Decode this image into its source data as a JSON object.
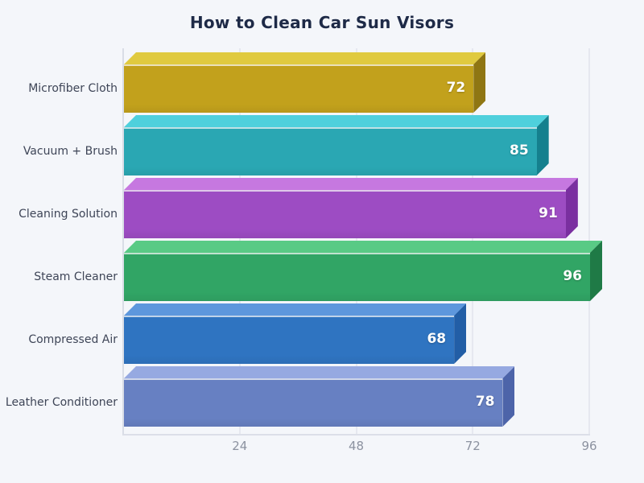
{
  "page": {
    "background_color": "#f4f6fa",
    "title_color": "#1e2a47",
    "axis_line_color": "#d9dde6",
    "gridline_color": "#e6e8f0",
    "tick_label_color": "#8c92a0",
    "category_label_color": "#3e4557",
    "value_label_color": "#ffffff"
  },
  "chart_data": {
    "type": "bar",
    "orientation": "horizontal",
    "style": "3d-extruded-bars",
    "title": "How to Clean Car Sun Visors",
    "categories": [
      "Microfiber Cloth",
      "Vacuum + Brush",
      "Cleaning Solution",
      "Steam Cleaner",
      "Compressed Air",
      "Leather Conditioner"
    ],
    "values": [
      72,
      85,
      91,
      96,
      68,
      78
    ],
    "bar_colors": [
      {
        "front": "#c2a11c",
        "top": "#e0ca3f",
        "side": "#8f7613"
      },
      {
        "front": "#2aa7b3",
        "top": "#4fd0dc",
        "side": "#15808e"
      },
      {
        "front": "#9d4cc3",
        "top": "#c678e0",
        "side": "#7a2fa0"
      },
      {
        "front": "#31a565",
        "top": "#59ca85",
        "side": "#1f7a46"
      },
      {
        "front": "#2f74c1",
        "top": "#5d97dd",
        "side": "#225ea6"
      },
      {
        "front": "#6780c2",
        "top": "#96a9e1",
        "side": "#4d64a9"
      }
    ],
    "xlabel": "",
    "ylabel": "",
    "xlim": [
      0,
      96
    ],
    "xticks": [
      24,
      48,
      72,
      96
    ],
    "grid": "vertical-only",
    "legend": "none",
    "value_labels": "inside-end-white-bold"
  }
}
